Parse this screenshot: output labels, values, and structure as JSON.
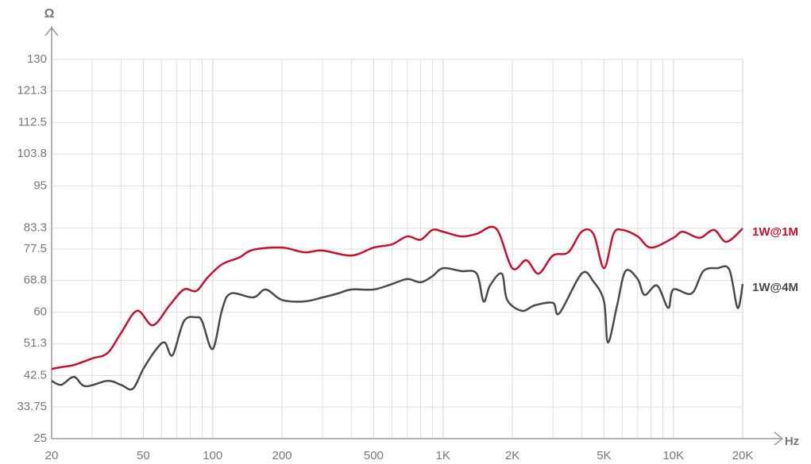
{
  "chart_data": {
    "type": "line",
    "ylabel": "Ω",
    "xlabel": "Hz",
    "xscale": "log",
    "grid": true,
    "xlim": [
      20,
      20000
    ],
    "ylim": [
      25,
      130
    ],
    "xticks": [
      20,
      50,
      100,
      200,
      500,
      {
        "value": 1000,
        "label": "1K"
      },
      {
        "value": 2000,
        "label": "2K"
      },
      {
        "value": 5000,
        "label": "5K"
      },
      {
        "value": 10000,
        "label": "10K"
      },
      {
        "value": 20000,
        "label": "20K"
      }
    ],
    "yticks": [
      25,
      33.75,
      42.5,
      51.3,
      60,
      68.8,
      77.5,
      83.3,
      95,
      103.8,
      112.5,
      121.3,
      130
    ],
    "series": [
      {
        "name": "1W@1M",
        "color": "#c8102e",
        "x": [
          20,
          22,
          25,
          30,
          35,
          40,
          47,
          55,
          65,
          75,
          85,
          95,
          110,
          130,
          150,
          200,
          250,
          300,
          400,
          500,
          600,
          700,
          800,
          900,
          1000,
          1200,
          1400,
          1700,
          2000,
          2300,
          2600,
          3000,
          3500,
          4000,
          4500,
          5000,
          5500,
          6000,
          7000,
          8000,
          10000,
          11000,
          13000,
          15000,
          17000,
          20000
        ],
        "values": [
          44.3,
          44.8,
          45.4,
          47.2,
          48.7,
          54.2,
          60.4,
          56.4,
          61.9,
          66.3,
          65.9,
          69.6,
          73.3,
          75.1,
          77.3,
          77.9,
          76.6,
          77.1,
          75.7,
          77.9,
          78.8,
          81.0,
          80.1,
          82.8,
          82.3,
          81.0,
          81.7,
          83.2,
          72.2,
          74.4,
          70.7,
          75.7,
          76.6,
          82.3,
          81.7,
          72.2,
          81.7,
          82.8,
          81.0,
          77.9,
          80.6,
          82.3,
          80.6,
          82.8,
          79.5,
          83.2
        ]
      },
      {
        "name": "1W@4M",
        "color": "#4a4a4e",
        "x": [
          20,
          22,
          25,
          28,
          35,
          40,
          45,
          50,
          57,
          62,
          67,
          75,
          85,
          90,
          100,
          110,
          120,
          150,
          170,
          200,
          250,
          300,
          350,
          400,
          500,
          600,
          700,
          800,
          900,
          1000,
          1200,
          1400,
          1500,
          1600,
          1800,
          1900,
          2200,
          2500,
          3000,
          3200,
          4000,
          4500,
          5000,
          5200,
          5700,
          6200,
          7000,
          7500,
          8500,
          9500,
          10000,
          12000,
          13500,
          15500,
          17500,
          19000,
          20000
        ],
        "values": [
          41.0,
          39.9,
          42.1,
          39.5,
          41.0,
          39.9,
          38.8,
          44.3,
          49.8,
          51.6,
          48.1,
          57.5,
          58.6,
          57.5,
          49.8,
          60.8,
          65.2,
          64.1,
          66.3,
          63.4,
          63.0,
          64.1,
          65.2,
          66.3,
          66.3,
          67.8,
          69.2,
          68.3,
          70.0,
          72.2,
          71.4,
          70.7,
          63.0,
          67.4,
          70.7,
          63.4,
          60.4,
          61.9,
          62.6,
          59.7,
          70.7,
          68.5,
          63.0,
          51.6,
          61.9,
          71.4,
          69.2,
          64.8,
          67.4,
          61.2,
          66.3,
          65.2,
          71.4,
          72.2,
          71.8,
          61.2,
          67.8
        ]
      }
    ]
  }
}
